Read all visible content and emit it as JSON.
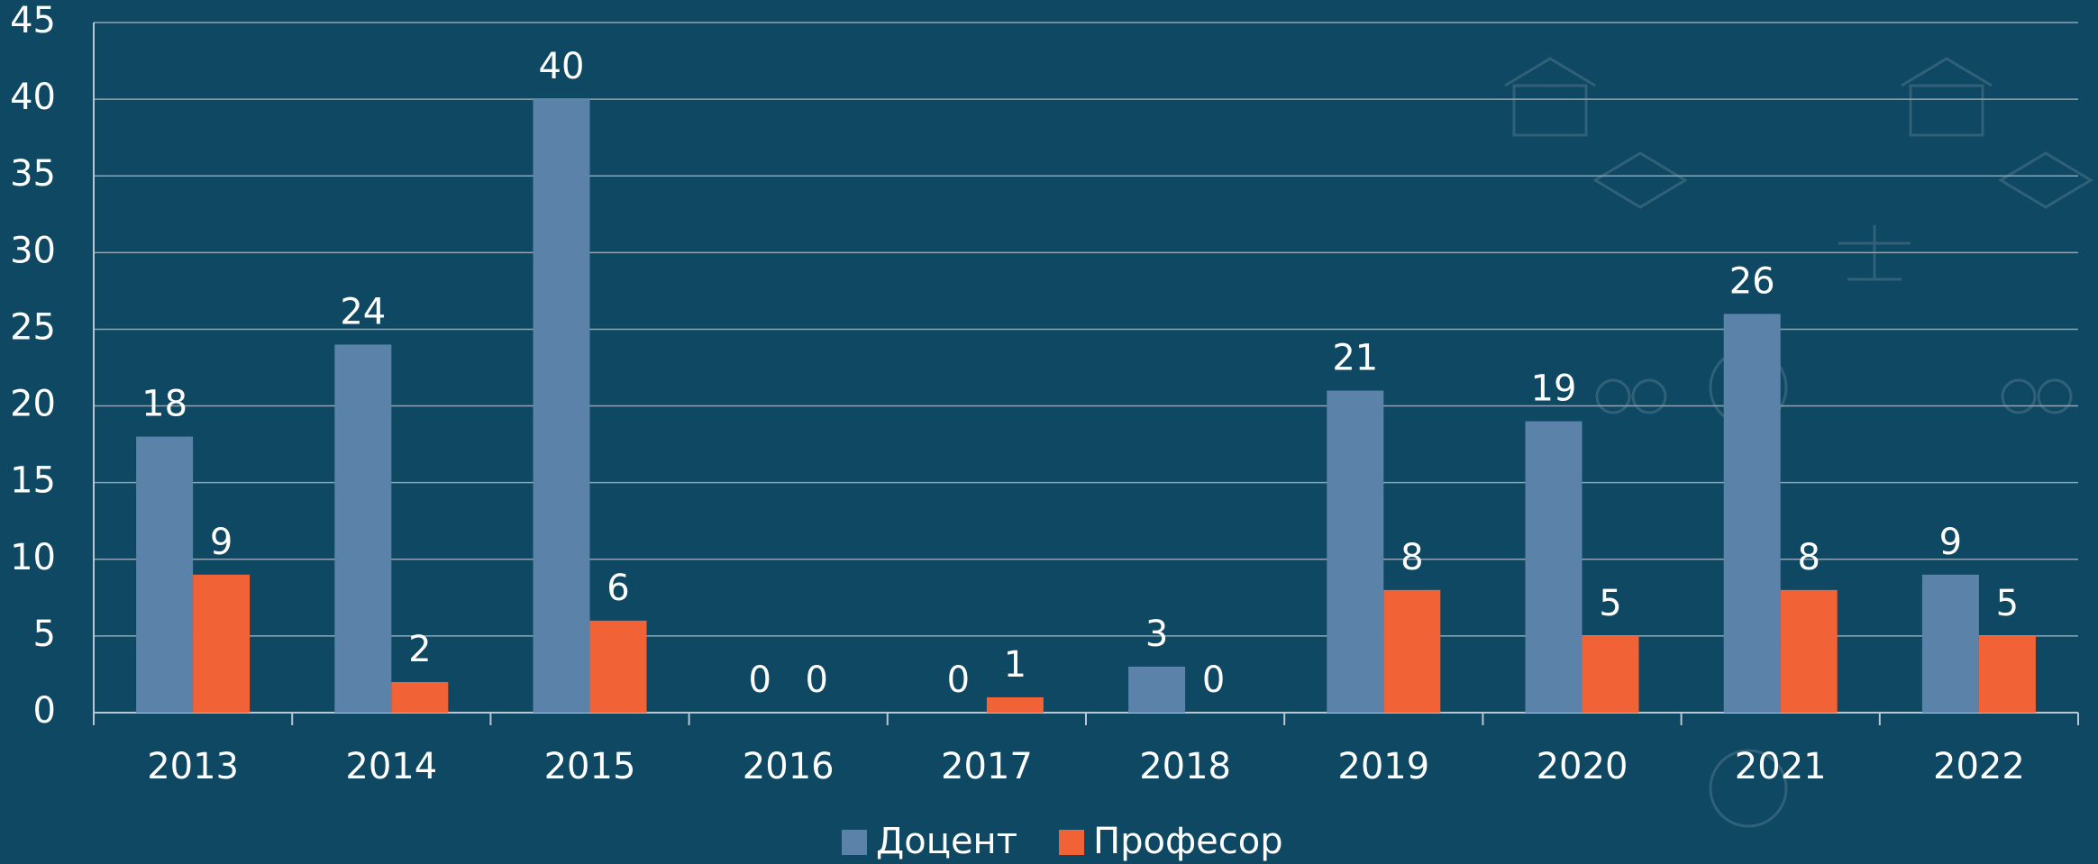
{
  "chart_data": {
    "type": "bar",
    "categories": [
      "2013",
      "2014",
      "2015",
      "2016",
      "2017",
      "2018",
      "2019",
      "2020",
      "2021",
      "2022"
    ],
    "series": [
      {
        "name": "Доцент",
        "color": "#5b83aa",
        "values": [
          18,
          24,
          40,
          0,
          0,
          3,
          21,
          19,
          26,
          9
        ]
      },
      {
        "name": "Професор",
        "color": "#f26237",
        "values": [
          9,
          2,
          6,
          0,
          1,
          0,
          8,
          5,
          8,
          5
        ]
      }
    ],
    "ylim": [
      0,
      45
    ],
    "yticks": [
      0,
      5,
      10,
      15,
      20,
      25,
      30,
      35,
      40,
      45
    ],
    "grid": true,
    "legend": "bottom"
  }
}
